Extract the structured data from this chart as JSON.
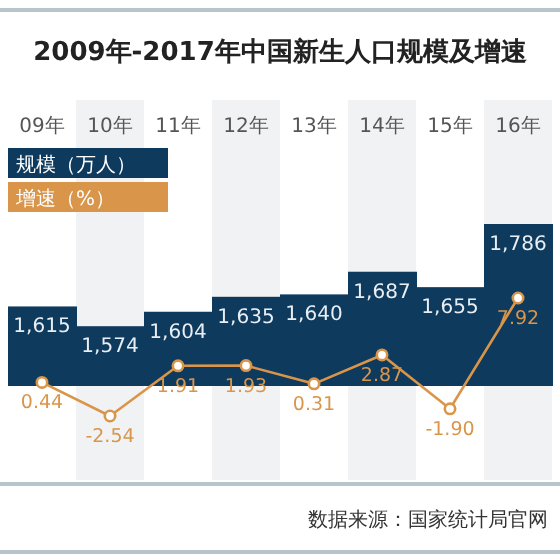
{
  "chart_data": {
    "type": "bar",
    "title": "2009年-2017年中国新生人口规模及增速",
    "categories": [
      "09年",
      "10年",
      "11年",
      "12年",
      "13年",
      "14年",
      "15年",
      "16年"
    ],
    "series": [
      {
        "name": "规模（万人）",
        "color": "#0e3a5d",
        "values": [
          1615,
          1574,
          1604,
          1635,
          1640,
          1687,
          1655,
          1786
        ],
        "value_labels": [
          "1,615",
          "1,574",
          "1,604",
          "1,635",
          "1,640",
          "1,687",
          "1,655",
          "1,786"
        ]
      },
      {
        "name": "增速（%）",
        "type": "line",
        "axis": "y2",
        "color": "#d9954a",
        "values": [
          0.44,
          -2.54,
          1.91,
          1.93,
          0.31,
          2.87,
          -1.9,
          7.92
        ],
        "value_labels": [
          "0.44",
          "-2.54",
          "1.91",
          "1.93",
          "0.31",
          "2.87",
          "-1.90",
          "7.92"
        ]
      }
    ],
    "ylim": [
      1450,
      1786
    ],
    "marker": "circle",
    "legend": "top left",
    "annotations": [
      "数据来源：国家统计局官网"
    ]
  }
}
